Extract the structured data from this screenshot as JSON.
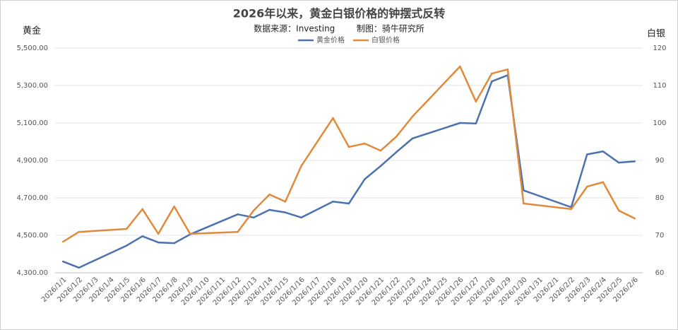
{
  "chart_data": {
    "type": "line",
    "title": "2026年以来，黄金白银价格的钟摆式反转",
    "subtitle": "数据来源：Investing        制图：骑牛研究所",
    "y_label": "黄金",
    "y2_label": "白银",
    "categories": [
      "2026/1/1",
      "2026/1/2",
      "2026/1/3",
      "2026/1/4",
      "2026/1/5",
      "2026/1/6",
      "2026/1/7",
      "2026/1/8",
      "2026/1/9",
      "2026/1/10",
      "2026/1/11",
      "2026/1/12",
      "2026/1/13",
      "2026/1/14",
      "2026/1/15",
      "2026/1/16",
      "2026/1/17",
      "2026/1/18",
      "2026/1/19",
      "2026/1/20",
      "2026/1/21",
      "2026/1/22",
      "2026/1/23",
      "2026/1/24",
      "2026/1/25",
      "2026/1/26",
      "2026/1/27",
      "2026/1/28",
      "2026/1/29",
      "2026/1/30",
      "2026/1/31",
      "2026/2/1",
      "2026/2/2",
      "2026/2/3",
      "2026/2/4",
      "2026/2/5",
      "2026/2/6"
    ],
    "series": [
      {
        "name": "黄金价格",
        "color": "#4a72b0",
        "axis": "y",
        "values": [
          4360,
          4327,
          null,
          null,
          4445,
          4495,
          4462,
          4458,
          4505,
          null,
          null,
          4612,
          4595,
          4636,
          4622,
          4595,
          null,
          4680,
          4670,
          4800,
          4870,
          4945,
          5017,
          null,
          null,
          5100,
          5097,
          5322,
          5355,
          4740,
          null,
          null,
          4650,
          4932,
          4948,
          4888,
          4895
        ]
      },
      {
        "name": "白银价格",
        "color": "#e08a3c",
        "axis": "y2",
        "values": [
          68.3,
          70.9,
          null,
          null,
          71.7,
          77,
          70.4,
          77.7,
          70.4,
          null,
          null,
          70.9,
          76.6,
          80.9,
          79,
          88.5,
          null,
          101.3,
          93.6,
          94.5,
          92.6,
          96.4,
          101.7,
          null,
          null,
          115.1,
          105.7,
          113.2,
          114.3,
          78.5,
          null,
          null,
          77,
          83,
          84.2,
          76.6,
          74.5
        ]
      }
    ],
    "ylim": [
      4300,
      5500
    ],
    "yticks": [
      {
        "value": 4300,
        "label": "4,300.00"
      },
      {
        "value": 4500,
        "label": "4,500.00"
      },
      {
        "value": 4700,
        "label": "4,700.00"
      },
      {
        "value": 4900,
        "label": "4,900.00"
      },
      {
        "value": 5100,
        "label": "5,100.00"
      },
      {
        "value": 5300,
        "label": "5,300.00"
      },
      {
        "value": 5500,
        "label": "5,500.00"
      }
    ],
    "y2lim": [
      60,
      120
    ],
    "y2ticks": [
      60,
      70,
      80,
      90,
      100,
      110,
      120
    ],
    "grid": true,
    "legend": "top"
  }
}
